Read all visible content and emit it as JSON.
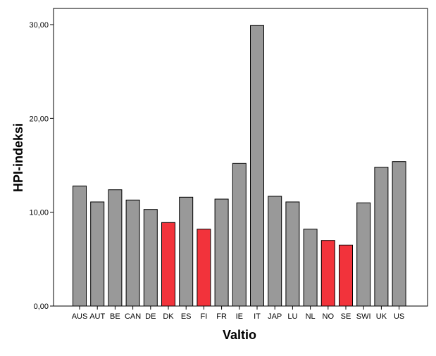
{
  "chart_data": {
    "type": "bar",
    "title": "",
    "xlabel": "Valtio",
    "ylabel": "HPI-indeksi",
    "ylim": [
      0,
      32
    ],
    "yticks": [
      0,
      10,
      20,
      30
    ],
    "ytick_labels": [
      "0,00",
      "10,00",
      "20,00",
      "30,00"
    ],
    "grid": false,
    "categories": [
      "AUS",
      "AUT",
      "BE",
      "CAN",
      "DE",
      "DK",
      "ES",
      "FI",
      "FR",
      "IE",
      "IT",
      "JAP",
      "LU",
      "NL",
      "NO",
      "SE",
      "SWI",
      "UK",
      "US"
    ],
    "values": [
      12.8,
      11.1,
      12.4,
      11.3,
      10.3,
      8.9,
      11.6,
      8.2,
      11.4,
      15.2,
      29.9,
      11.7,
      11.1,
      8.2,
      7.0,
      6.5,
      11.0,
      14.8,
      15.4
    ],
    "highlighted": [
      "DK",
      "FI",
      "NO",
      "SE"
    ],
    "colors": {
      "default_bar": "#999999",
      "highlight_bar": "#f2333b",
      "bar_stroke": "#000000"
    }
  }
}
